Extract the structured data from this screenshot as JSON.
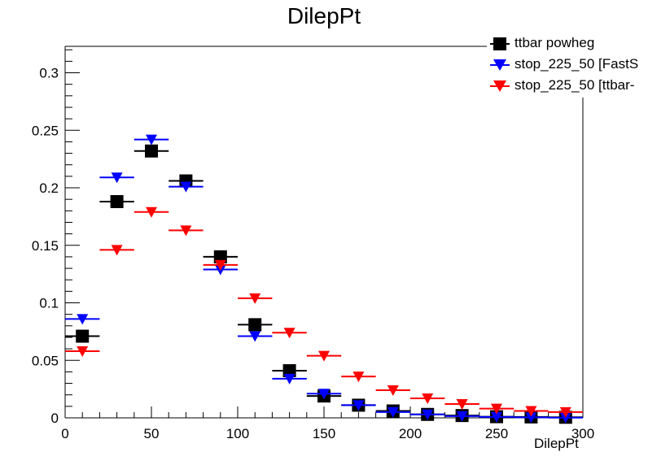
{
  "chart_data": {
    "type": "scatter",
    "title": "DilepPt",
    "xlabel": "DilepPt",
    "ylabel": "",
    "xlim": [
      0,
      300
    ],
    "ylim": [
      0,
      0.323
    ],
    "x_ticks": [
      0,
      50,
      100,
      150,
      200,
      250,
      300
    ],
    "y_ticks": [
      0,
      0.05,
      0.1,
      0.15,
      0.2,
      0.25,
      0.3
    ],
    "x_tick_labels": [
      "0",
      "50",
      "100",
      "150",
      "200",
      "250",
      "300"
    ],
    "y_tick_labels": [
      "0",
      "0.05",
      "0.1",
      "0.15",
      "0.2",
      "0.25",
      "0.3"
    ],
    "bin_width": 20,
    "grid": false,
    "legend_position": "top-right",
    "x": [
      10,
      30,
      50,
      70,
      90,
      110,
      130,
      150,
      170,
      190,
      210,
      230,
      250,
      270,
      290
    ],
    "series": [
      {
        "name": "ttbar powheg",
        "color": "#000000",
        "marker": "square",
        "values": [
          0.071,
          0.188,
          0.232,
          0.206,
          0.14,
          0.081,
          0.041,
          0.019,
          0.011,
          0.006,
          0.003,
          0.002,
          0.001,
          0.0008,
          0.0005
        ]
      },
      {
        "name": "stop_225_50 [FastS",
        "color": "#0000ff",
        "marker": "triangle-down",
        "values": [
          0.086,
          0.209,
          0.242,
          0.201,
          0.129,
          0.071,
          0.034,
          0.021,
          0.011,
          0.005,
          0.003,
          0.0015,
          0.0008,
          0.0004,
          0.0002
        ]
      },
      {
        "name": "stop_225_50 [ttbar-",
        "color": "#ff0000",
        "marker": "triangle-down",
        "values": [
          0.058,
          0.146,
          0.179,
          0.163,
          0.133,
          0.104,
          0.074,
          0.054,
          0.036,
          0.024,
          0.017,
          0.012,
          0.008,
          0.006,
          0.005
        ]
      }
    ]
  }
}
